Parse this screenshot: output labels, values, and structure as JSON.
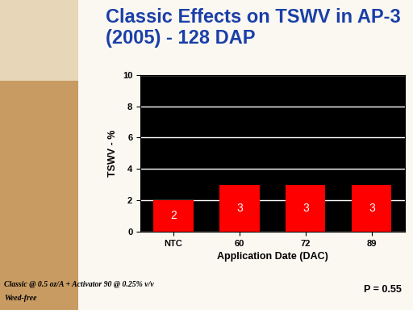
{
  "chart_data": {
    "type": "bar",
    "title": "Classic Effects on TSWV in AP-3 (2005) - 128 DAP",
    "x_label": "Application Date (DAC)",
    "y_label": "TSWV - %",
    "categories": [
      "NTC",
      "60",
      "72",
      "89"
    ],
    "values": [
      2,
      3,
      3,
      3
    ],
    "color": "#ff0000",
    "ylim": [
      0,
      10
    ],
    "yticks": [
      0,
      2,
      4,
      6,
      8,
      10
    ],
    "grid": true,
    "data_labels": true,
    "annotations": [
      "Classic @ 0.5 oz/A + Activator 90 @ 0.25% v/v",
      "Weed-free",
      "P = 0.55"
    ]
  }
}
